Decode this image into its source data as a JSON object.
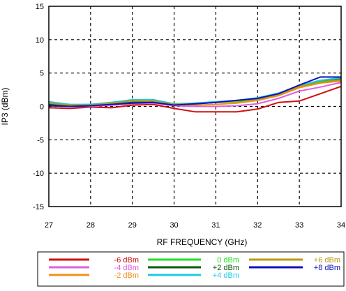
{
  "chart_data": {
    "type": "line",
    "xlabel": "RF FREQUENCY (GHz)",
    "ylabel": "IP3 (dBm)",
    "xlim": [
      27,
      34
    ],
    "ylim": [
      -15,
      15
    ],
    "xticks": [
      "27",
      "28",
      "29",
      "30",
      "31",
      "32",
      "33",
      "34"
    ],
    "yticks": [
      "15",
      "10",
      "5",
      "0",
      "-5",
      "-10",
      "-15"
    ],
    "grid": true,
    "legend_position": "bottom",
    "x": [
      27,
      27.5,
      28,
      28.5,
      29,
      29.5,
      30,
      30.5,
      31,
      31.5,
      32,
      32.5,
      33,
      33.5,
      34
    ],
    "series": [
      {
        "name": "-6 dBm",
        "color": "#d01010",
        "values": [
          -0.2,
          -0.3,
          -0.1,
          -0.2,
          0.2,
          0.3,
          -0.3,
          -0.8,
          -0.8,
          -0.8,
          -0.4,
          0.6,
          0.8,
          1.9,
          3.0
        ]
      },
      {
        "name": "-4 dBm",
        "color": "#e060e0",
        "values": [
          0.1,
          0.0,
          0.0,
          0.2,
          0.4,
          0.5,
          0.1,
          0.0,
          0.0,
          0.1,
          0.4,
          1.2,
          2.3,
          2.9,
          3.6
        ]
      },
      {
        "name": "-2 dBm",
        "color": "#f0901a",
        "values": [
          0.2,
          0.0,
          0.1,
          0.3,
          0.5,
          0.6,
          0.2,
          0.2,
          0.3,
          0.5,
          0.9,
          1.6,
          2.8,
          3.5,
          3.8
        ]
      },
      {
        "name": "0 dBm",
        "color": "#20e020",
        "values": [
          0.4,
          0.2,
          0.3,
          0.6,
          0.9,
          0.8,
          0.3,
          0.4,
          0.6,
          0.7,
          1.1,
          1.8,
          3.0,
          3.7,
          4.0
        ]
      },
      {
        "name": "+2 dBm",
        "color": "#0a5a0a",
        "values": [
          0.3,
          0.1,
          0.2,
          0.5,
          0.7,
          0.7,
          0.3,
          0.4,
          0.6,
          0.9,
          1.2,
          1.9,
          3.1,
          3.9,
          4.2
        ]
      },
      {
        "name": "+4 dBm",
        "color": "#20c8e8",
        "values": [
          0.7,
          0.3,
          0.3,
          0.6,
          1.0,
          1.0,
          0.4,
          0.5,
          0.7,
          0.9,
          1.3,
          2.0,
          3.1,
          3.9,
          4.3
        ]
      },
      {
        "name": "+6 dBm",
        "color": "#b89a10",
        "values": [
          0.5,
          0.2,
          0.2,
          0.5,
          0.8,
          0.8,
          0.3,
          0.4,
          0.6,
          0.8,
          1.1,
          1.8,
          3.0,
          3.6,
          4.0
        ]
      },
      {
        "name": "+8 dBm",
        "color": "#1010c0",
        "values": [
          0.1,
          0.0,
          0.1,
          0.3,
          0.5,
          0.6,
          0.2,
          0.4,
          0.6,
          0.9,
          1.2,
          1.9,
          3.2,
          4.4,
          4.4
        ]
      }
    ]
  }
}
